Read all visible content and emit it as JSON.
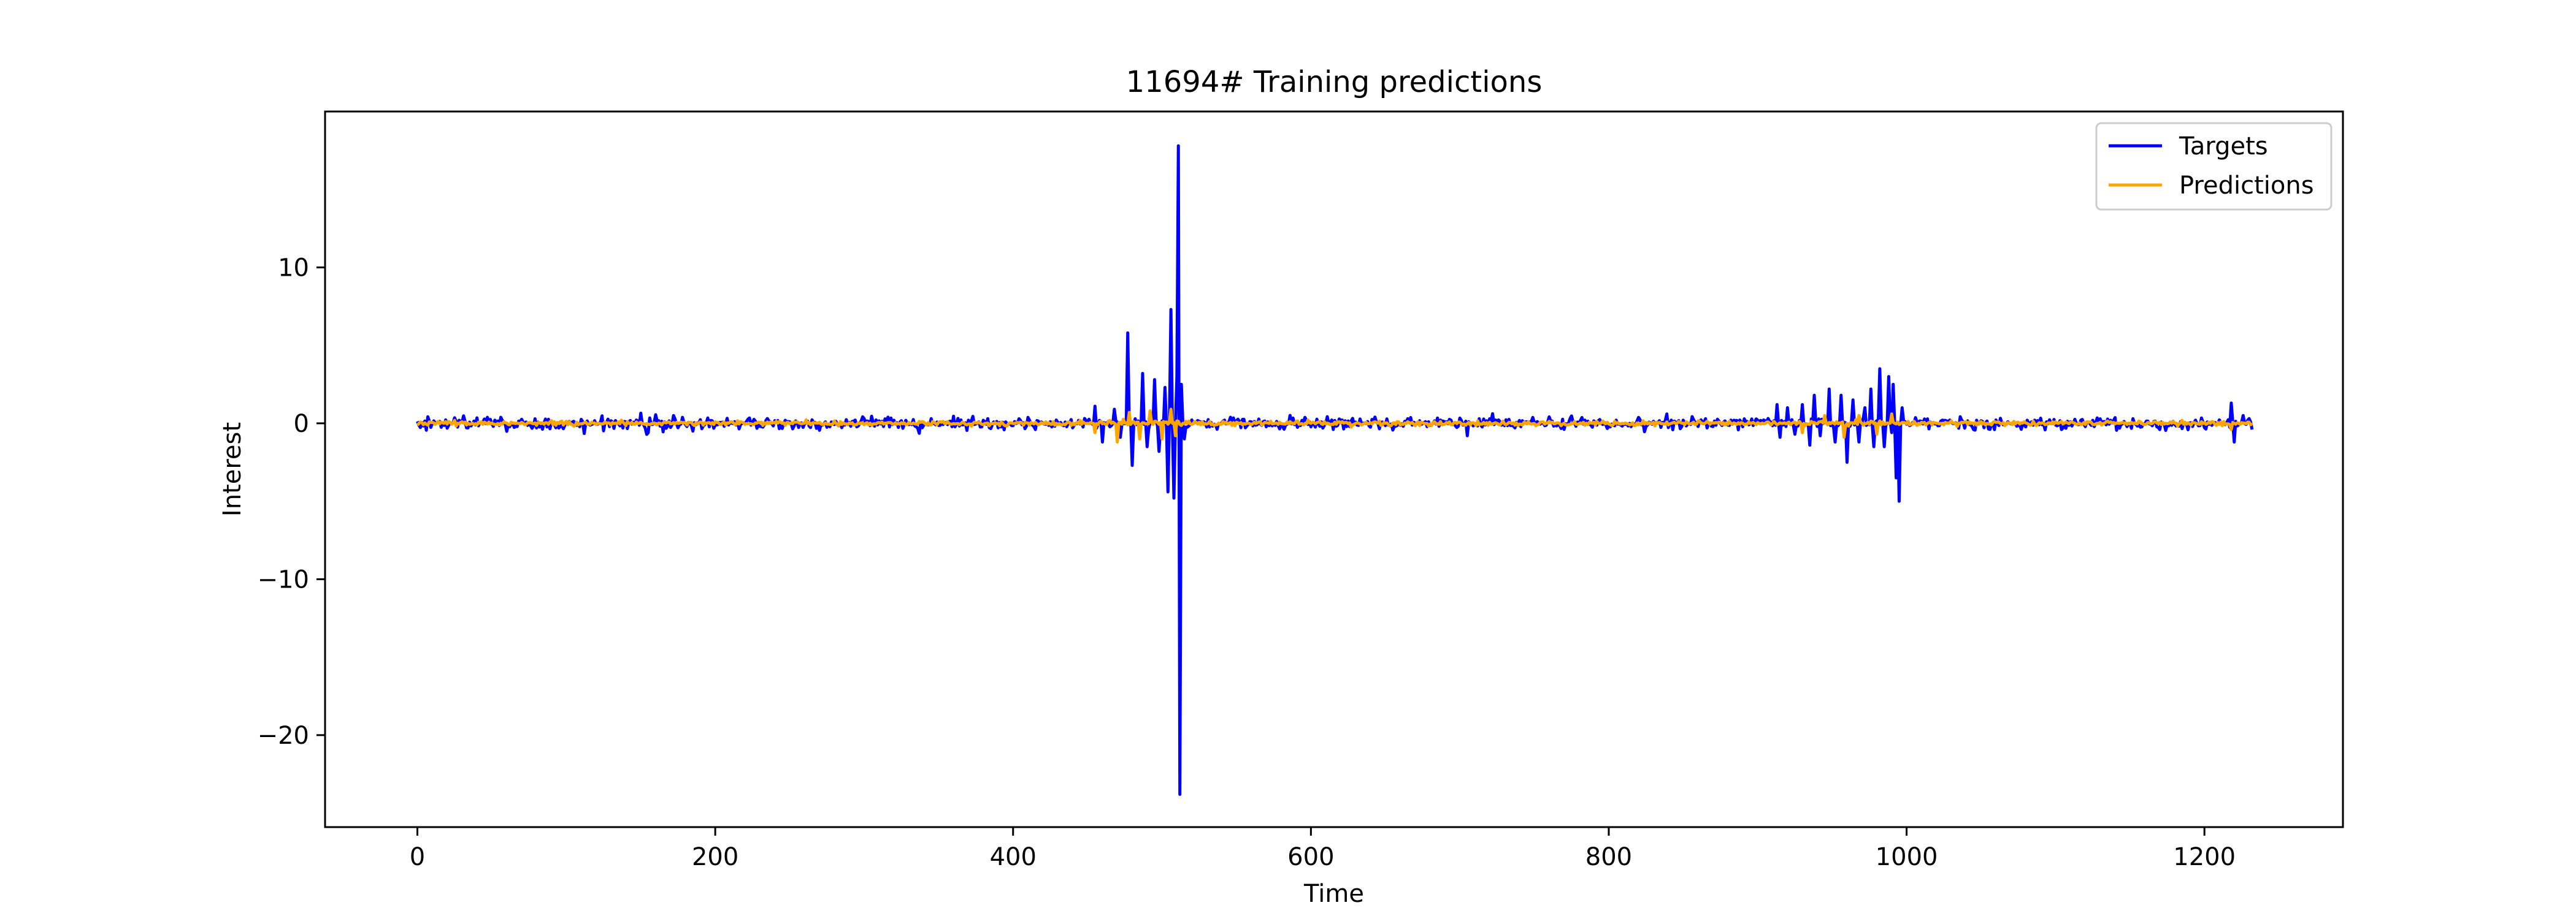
{
  "chart_data": {
    "type": "line",
    "title": "11694# Training predictions",
    "xlabel": "Time",
    "ylabel": "Interest",
    "xlim": [
      -62,
      1293
    ],
    "ylim": [
      -25.9,
      20.0
    ],
    "x_ticks": [
      0,
      200,
      400,
      600,
      800,
      1000,
      1200
    ],
    "x_tick_labels": [
      "0",
      "200",
      "400",
      "600",
      "800",
      "1000",
      "1200"
    ],
    "y_ticks": [
      -20,
      -10,
      0,
      10
    ],
    "y_tick_labels": [
      "−20",
      "−10",
      "0",
      "10"
    ],
    "grid": false,
    "legend_position": "top-right",
    "x_count": 1233,
    "series": [
      {
        "name": "Targets",
        "color": "#0000ff",
        "noise_sd": 0.18,
        "bursts": [
          {
            "x": 40,
            "y": 0.35
          },
          {
            "x": 95,
            "y": -0.3
          },
          {
            "x": 150,
            "y": 0.65
          },
          {
            "x": 155,
            "y": -0.6
          },
          {
            "x": 160,
            "y": 0.55
          },
          {
            "x": 165,
            "y": -0.55
          },
          {
            "x": 172,
            "y": 0.5
          },
          {
            "x": 185,
            "y": -0.5
          },
          {
            "x": 270,
            "y": -0.45
          },
          {
            "x": 300,
            "y": 0.3
          },
          {
            "x": 415,
            "y": -0.4
          },
          {
            "x": 455,
            "y": 1.1
          },
          {
            "x": 460,
            "y": -1.2
          },
          {
            "x": 468,
            "y": 0.9
          },
          {
            "x": 472,
            "y": -0.9
          },
          {
            "x": 477,
            "y": 5.8
          },
          {
            "x": 480,
            "y": -2.7
          },
          {
            "x": 487,
            "y": 3.2
          },
          {
            "x": 490,
            "y": -1.5
          },
          {
            "x": 495,
            "y": 2.8
          },
          {
            "x": 498,
            "y": -1.8
          },
          {
            "x": 502,
            "y": 2.3
          },
          {
            "x": 504,
            "y": -4.4
          },
          {
            "x": 506,
            "y": 7.3
          },
          {
            "x": 508,
            "y": -4.8
          },
          {
            "x": 510,
            "y": 3.0
          },
          {
            "x": 511,
            "y": 17.8
          },
          {
            "x": 512,
            "y": -23.8
          },
          {
            "x": 513,
            "y": 2.5
          },
          {
            "x": 515,
            "y": -1.0
          },
          {
            "x": 705,
            "y": -0.8
          },
          {
            "x": 913,
            "y": 1.2
          },
          {
            "x": 915,
            "y": -0.9
          },
          {
            "x": 920,
            "y": 1.0
          },
          {
            "x": 925,
            "y": -0.7
          },
          {
            "x": 930,
            "y": 1.2
          },
          {
            "x": 935,
            "y": -1.4
          },
          {
            "x": 938,
            "y": 1.8
          },
          {
            "x": 942,
            "y": -0.8
          },
          {
            "x": 948,
            "y": 2.2
          },
          {
            "x": 952,
            "y": -1.2
          },
          {
            "x": 956,
            "y": 1.8
          },
          {
            "x": 960,
            "y": -2.5
          },
          {
            "x": 964,
            "y": 1.5
          },
          {
            "x": 968,
            "y": -1.2
          },
          {
            "x": 972,
            "y": 1.0
          },
          {
            "x": 976,
            "y": 2.2
          },
          {
            "x": 978,
            "y": -1.5
          },
          {
            "x": 982,
            "y": 3.5
          },
          {
            "x": 985,
            "y": -1.5
          },
          {
            "x": 988,
            "y": 3.0
          },
          {
            "x": 990,
            "y": -0.6
          },
          {
            "x": 991,
            "y": 2.5
          },
          {
            "x": 993,
            "y": -3.5
          },
          {
            "x": 995,
            "y": -5.0
          },
          {
            "x": 997,
            "y": 1.0
          },
          {
            "x": 1218,
            "y": 1.3
          },
          {
            "x": 1220,
            "y": -1.2
          },
          {
            "x": 1226,
            "y": 0.5
          },
          {
            "x": 1230,
            "y": 0.3
          },
          {
            "x": 1232,
            "y": -0.4
          }
        ]
      },
      {
        "name": "Predictions",
        "color": "#ffa500",
        "noise_sd": 0.07,
        "bursts": [
          {
            "x": 455,
            "y": -0.6
          },
          {
            "x": 470,
            "y": -1.2
          },
          {
            "x": 478,
            "y": 0.7
          },
          {
            "x": 485,
            "y": -1.0
          },
          {
            "x": 492,
            "y": 0.8
          },
          {
            "x": 500,
            "y": -1.0
          },
          {
            "x": 506,
            "y": 0.9
          },
          {
            "x": 509,
            "y": -0.8
          },
          {
            "x": 930,
            "y": -0.6
          },
          {
            "x": 945,
            "y": 0.5
          },
          {
            "x": 958,
            "y": -0.9
          },
          {
            "x": 968,
            "y": 0.5
          },
          {
            "x": 980,
            "y": -0.7
          },
          {
            "x": 990,
            "y": 0.6
          },
          {
            "x": 1218,
            "y": -0.4
          }
        ]
      }
    ]
  }
}
